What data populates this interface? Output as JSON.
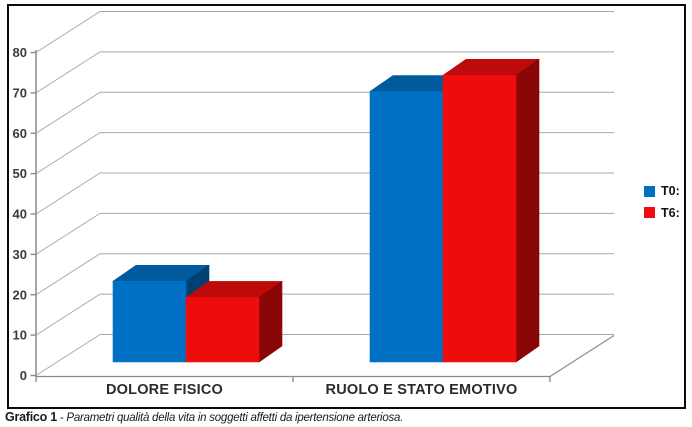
{
  "figure": {
    "caption": {
      "label": "Grafico 1",
      "separator": " - ",
      "text": "Parametri qualità della vita in soggetti affetti da ipertensione arteriosa."
    }
  },
  "legend": {
    "position": "right",
    "items": [
      {
        "label": "T0:",
        "color": "#0070C4"
      },
      {
        "label": "T6:",
        "color": "#EE0C0C"
      }
    ]
  },
  "chart_data": {
    "type": "bar",
    "style": "3d-clustered-column",
    "title": "",
    "xlabel": "",
    "ylabel": "",
    "categories": [
      "DOLORE FISICO",
      "RUOLO E STATO EMOTIVO"
    ],
    "series": [
      {
        "name": "T0:",
        "color": "#0070C4",
        "values": [
          20,
          67
        ]
      },
      {
        "name": "T6:",
        "color": "#EE0C0C",
        "values": [
          16,
          71
        ]
      }
    ],
    "ylim": [
      0,
      80
    ],
    "ytick_step": 10,
    "yticks": [
      "0",
      "10",
      "20",
      "30",
      "40",
      "50",
      "60",
      "70",
      "80"
    ],
    "grid": true,
    "wall_color": "#ffffff",
    "gridline_color": "#a8a8a8",
    "axis_color": "#8c8c8c",
    "legend_position": "right"
  }
}
